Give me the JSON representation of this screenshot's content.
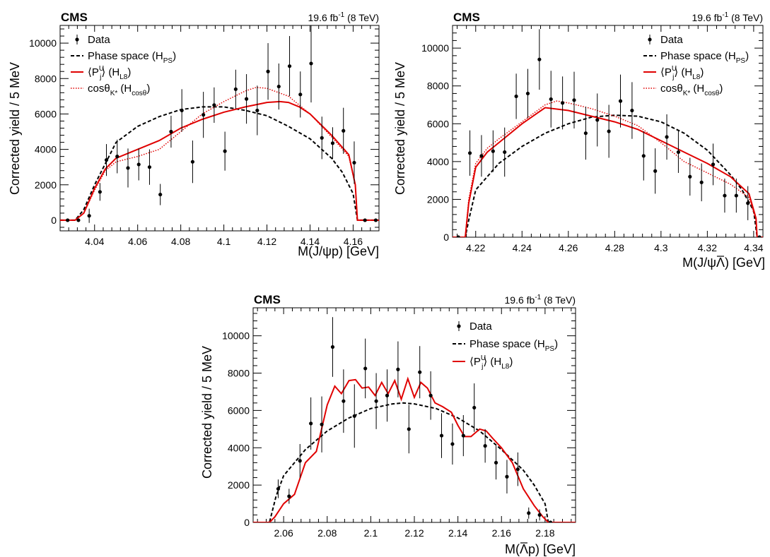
{
  "chart_data": [
    {
      "type": "scatter",
      "experiment": "CMS",
      "lumi": "19.6 fb",
      "lumi_exp": "-1",
      "energy": "(8 TeV)",
      "xlabel": "M(J/ψp) [GeV]",
      "ylabel": "Corrected yield / 5 MeV",
      "xlim": [
        4.024,
        4.172
      ],
      "ylim": [
        -600,
        11000
      ],
      "xticks": [
        4.04,
        4.06,
        4.08,
        4.1,
        4.12,
        4.14,
        4.16
      ],
      "xtick_labels": [
        "4.04",
        "4.06",
        "4.08",
        "4.1",
        "4.12",
        "4.14",
        "4.16"
      ],
      "yticks": [
        0,
        2000,
        4000,
        6000,
        8000,
        10000
      ],
      "ytick_labels": [
        "0",
        "2000",
        "4000",
        "6000",
        "8000",
        "10000"
      ],
      "legend": {
        "placement": "top-left",
        "entries": [
          {
            "style": "data",
            "text": "Data"
          },
          {
            "style": "dashed",
            "text": "Phase space (H",
            "sub": "PS",
            "suffix": ")"
          },
          {
            "style": "solid",
            "text": "⟨P",
            "sub": "j",
            "sup": "U",
            "suffix2": "⟩ (H",
            "sub2": "L8",
            "suffix": ")"
          },
          {
            "style": "dotted",
            "text": "cosθ",
            "sub": "K*",
            "suffix2": " (H",
            "sub2": "cosθ",
            "suffix": ")"
          }
        ]
      },
      "series": [
        {
          "name": "Data",
          "style": "data",
          "x": [
            4.0275,
            4.0325,
            4.0375,
            4.0425,
            4.0455,
            4.0505,
            4.0555,
            4.0605,
            4.0655,
            4.0705,
            4.0755,
            4.0805,
            4.0855,
            4.0905,
            4.0955,
            4.1005,
            4.1055,
            4.1105,
            4.1155,
            4.1205,
            4.1255,
            4.1305,
            4.1355,
            4.1405,
            4.1455,
            4.1505,
            4.1555,
            4.1605,
            4.1655,
            4.1705
          ],
          "y": [
            0,
            0,
            250,
            1600,
            3400,
            3600,
            2950,
            3150,
            3000,
            1450,
            5000,
            6200,
            3300,
            5950,
            6500,
            3900,
            7400,
            6850,
            6200,
            8400,
            7550,
            8700,
            7100,
            8850,
            4650,
            4350,
            5050,
            3250,
            0,
            0
          ],
          "err": [
            0,
            0,
            400,
            500,
            900,
            950,
            1100,
            900,
            1000,
            600,
            900,
            1200,
            1200,
            1300,
            1000,
            1100,
            1100,
            1400,
            1400,
            1600,
            1300,
            1700,
            1300,
            2200,
            1200,
            900,
            1300,
            1200,
            0,
            0
          ]
        },
        {
          "name": "Phase space (H_PS)",
          "style": "dashed",
          "x": [
            4.024,
            4.031,
            4.035,
            4.04,
            4.05,
            4.06,
            4.07,
            4.08,
            4.09,
            4.1,
            4.11,
            4.12,
            4.13,
            4.14,
            4.15,
            4.155,
            4.16,
            4.162,
            4.172
          ],
          "y": [
            0,
            0,
            600,
            2000,
            4400,
            5300,
            5850,
            6250,
            6400,
            6400,
            6200,
            5900,
            5300,
            4600,
            3500,
            2700,
            1500,
            0,
            0
          ]
        },
        {
          "name": "⟨P_j^U⟩ (H_L8)",
          "style": "solid",
          "x": [
            4.024,
            4.031,
            4.035,
            4.04,
            4.045,
            4.05,
            4.06,
            4.07,
            4.08,
            4.09,
            4.1,
            4.11,
            4.12,
            4.126,
            4.13,
            4.135,
            4.14,
            4.15,
            4.158,
            4.161,
            4.162,
            4.172
          ],
          "y": [
            0,
            0,
            400,
            1800,
            2900,
            3500,
            4000,
            4500,
            5200,
            5700,
            6100,
            6400,
            6650,
            6700,
            6650,
            6400,
            6000,
            4800,
            3700,
            2000,
            0,
            0
          ]
        },
        {
          "name": "cosθ_K* (H_cosθ)",
          "style": "dotted",
          "x": [
            4.024,
            4.031,
            4.035,
            4.04,
            4.045,
            4.05,
            4.06,
            4.07,
            4.08,
            4.09,
            4.1,
            4.11,
            4.115,
            4.12,
            4.13,
            4.14,
            4.15,
            4.158,
            4.161,
            4.162,
            4.172
          ],
          "y": [
            0,
            0,
            400,
            1700,
            2800,
            3300,
            3600,
            4000,
            5000,
            6000,
            6700,
            7300,
            7500,
            7450,
            7000,
            6000,
            4700,
            3600,
            2000,
            0,
            0
          ]
        }
      ]
    },
    {
      "type": "scatter",
      "experiment": "CMS",
      "lumi": "19.6 fb",
      "lumi_exp": "-1",
      "energy": "(8 TeV)",
      "xlabel": "M(J/ψΛ) [GeV]",
      "xlabel_overline": "Λ",
      "ylabel": "Corrected yield / 5 MeV",
      "xlim": [
        4.21,
        4.344
      ],
      "ylim": [
        0,
        11200
      ],
      "xticks": [
        4.22,
        4.24,
        4.26,
        4.28,
        4.3,
        4.32,
        4.34
      ],
      "xtick_labels": [
        "4.22",
        "4.24",
        "4.26",
        "4.28",
        "4.3",
        "4.32",
        "4.34"
      ],
      "yticks": [
        0,
        2000,
        4000,
        6000,
        8000,
        10000
      ],
      "ytick_labels": [
        "0",
        "2000",
        "4000",
        "6000",
        "8000",
        "10000"
      ],
      "legend": {
        "placement": "top-right",
        "entries": [
          {
            "style": "data",
            "text": "Data"
          },
          {
            "style": "dashed",
            "text": "Phase space (H",
            "sub": "PS",
            "suffix": ")"
          },
          {
            "style": "solid",
            "text": "⟨P",
            "sub": "j",
            "sup": "U",
            "suffix2": "⟩ (H",
            "sub2": "L8",
            "suffix": ")"
          },
          {
            "style": "dotted",
            "text": "cosθ",
            "sub": "K*",
            "suffix2": " (H",
            "sub2": "cosθ",
            "suffix": ")"
          }
        ]
      },
      "series": [
        {
          "name": "Data",
          "style": "data",
          "x": [
            4.2125,
            4.2175,
            4.2225,
            4.2275,
            4.2325,
            4.2375,
            4.2425,
            4.2475,
            4.2525,
            4.2575,
            4.2625,
            4.2675,
            4.2725,
            4.2775,
            4.2825,
            4.2875,
            4.2925,
            4.2975,
            4.3025,
            4.3075,
            4.3125,
            4.3175,
            4.3225,
            4.3275,
            4.3325,
            4.3375,
            4.3425
          ],
          "y": [
            0,
            4450,
            4300,
            4550,
            4500,
            7450,
            7600,
            9400,
            7300,
            7100,
            7250,
            5500,
            6200,
            5600,
            7200,
            6700,
            4300,
            3500,
            5300,
            4500,
            3200,
            2900,
            3850,
            2200,
            2200,
            1800,
            0
          ],
          "err": [
            0,
            1200,
            1100,
            1100,
            1300,
            1200,
            1300,
            1600,
            1500,
            1400,
            1500,
            1400,
            1400,
            1400,
            1400,
            1500,
            1300,
            1200,
            1200,
            1100,
            1000,
            1000,
            1100,
            900,
            900,
            900,
            0
          ]
        },
        {
          "name": "Phase space (H_PS)",
          "style": "dashed",
          "x": [
            4.21,
            4.2155,
            4.217,
            4.22,
            4.23,
            4.24,
            4.25,
            4.26,
            4.27,
            4.28,
            4.29,
            4.3,
            4.31,
            4.32,
            4.33,
            4.335,
            4.34,
            4.3415,
            4.344
          ],
          "y": [
            0,
            0,
            900,
            2500,
            3900,
            4800,
            5500,
            6000,
            6350,
            6450,
            6400,
            6100,
            5500,
            4600,
            3300,
            2500,
            1400,
            0,
            0
          ]
        },
        {
          "name": "⟨P_j^U⟩ (H_L8)",
          "style": "solid",
          "x": [
            4.21,
            4.2155,
            4.217,
            4.22,
            4.225,
            4.23,
            4.24,
            4.25,
            4.26,
            4.27,
            4.28,
            4.29,
            4.3,
            4.31,
            4.32,
            4.33,
            4.338,
            4.341,
            4.3415,
            4.344
          ],
          "y": [
            0,
            0,
            1800,
            3700,
            4500,
            5000,
            6000,
            6850,
            6700,
            6400,
            6100,
            5700,
            5100,
            4500,
            3900,
            3200,
            2300,
            1000,
            0,
            0
          ]
        },
        {
          "name": "cosθ_K* (H_cosθ)",
          "style": "dotted",
          "x": [
            4.21,
            4.2155,
            4.217,
            4.22,
            4.225,
            4.23,
            4.24,
            4.25,
            4.255,
            4.26,
            4.27,
            4.28,
            4.29,
            4.3,
            4.31,
            4.32,
            4.33,
            4.338,
            4.341,
            4.3415,
            4.344
          ],
          "y": [
            0,
            0,
            2000,
            3900,
            4700,
            5200,
            6100,
            7000,
            7200,
            7100,
            6800,
            6400,
            5900,
            5000,
            4000,
            3400,
            2800,
            2100,
            900,
            0,
            0
          ]
        }
      ]
    },
    {
      "type": "scatter",
      "experiment": "CMS",
      "lumi": "19.6 fb",
      "lumi_exp": "-1",
      "energy": "(8 TeV)",
      "xlabel": "M(Λp) [GeV]",
      "xlabel_overline": "Λ",
      "ylabel": "Corrected yield / 5 MeV",
      "xlim": [
        2.046,
        2.194
      ],
      "ylim": [
        0,
        11500
      ],
      "xticks": [
        2.06,
        2.08,
        2.1,
        2.12,
        2.14,
        2.16,
        2.18
      ],
      "xtick_labels": [
        "2.06",
        "2.08",
        "2.1",
        "2.12",
        "2.14",
        "2.16",
        "2.18"
      ],
      "yticks": [
        0,
        2000,
        4000,
        6000,
        8000,
        10000
      ],
      "ytick_labels": [
        "0",
        "2000",
        "4000",
        "6000",
        "8000",
        "10000"
      ],
      "legend": {
        "placement": "top-right",
        "entries": [
          {
            "style": "data",
            "text": "Data"
          },
          {
            "style": "dashed",
            "text": "Phase space (H",
            "sub": "PS",
            "suffix": ")"
          },
          {
            "style": "solid",
            "text": "⟨P",
            "sub": "j",
            "sup": "U",
            "suffix2": "⟩ (H",
            "sub2": "L8",
            "suffix": ")"
          }
        ]
      },
      "series": [
        {
          "name": "Data",
          "style": "data",
          "x": [
            2.0575,
            2.0625,
            2.0675,
            2.0725,
            2.0775,
            2.0825,
            2.0875,
            2.0925,
            2.0975,
            2.1025,
            2.1075,
            2.1125,
            2.1175,
            2.1225,
            2.1275,
            2.1325,
            2.1375,
            2.1425,
            2.1475,
            2.1525,
            2.1575,
            2.1625,
            2.1675,
            2.1725,
            2.1775,
            2.1825
          ],
          "y": [
            1800,
            1400,
            3300,
            5300,
            5250,
            9400,
            6500,
            5700,
            8250,
            6500,
            6800,
            8200,
            5000,
            8050,
            6800,
            4650,
            4200,
            4650,
            6150,
            4100,
            3200,
            2450,
            2850,
            500,
            400,
            0
          ],
          "err": [
            500,
            400,
            900,
            1400,
            1500,
            1600,
            1700,
            1700,
            1600,
            1500,
            1400,
            1500,
            1300,
            1400,
            1300,
            1200,
            1100,
            1100,
            1300,
            900,
            900,
            900,
            900,
            300,
            300,
            0
          ]
        },
        {
          "name": "Phase space (H_PS)",
          "style": "dashed",
          "x": [
            2.046,
            2.0535,
            2.0565,
            2.06,
            2.07,
            2.08,
            2.09,
            2.1,
            2.11,
            2.115,
            2.12,
            2.13,
            2.14,
            2.15,
            2.16,
            2.17,
            2.175,
            2.18,
            2.1815,
            2.194
          ],
          "y": [
            0,
            0,
            1400,
            2500,
            3900,
            4900,
            5600,
            6100,
            6350,
            6400,
            6350,
            6100,
            5600,
            4900,
            3900,
            2800,
            2000,
            1000,
            0,
            0
          ]
        },
        {
          "name": "⟨P_j^U⟩ (H_L8)",
          "style": "solid",
          "x": [
            2.046,
            2.0535,
            2.056,
            2.06,
            2.065,
            2.07,
            2.075,
            2.08,
            2.0835,
            2.0865,
            2.09,
            2.093,
            2.096,
            2.099,
            2.102,
            2.105,
            2.108,
            2.111,
            2.114,
            2.117,
            2.12,
            2.123,
            2.126,
            2.1295,
            2.133,
            2.137,
            2.14,
            2.143,
            2.146,
            2.15,
            2.153,
            2.156,
            2.16,
            2.165,
            2.17,
            2.175,
            2.179,
            2.1815,
            2.194
          ],
          "y": [
            0,
            0,
            300,
            1000,
            1500,
            3200,
            3800,
            6300,
            7300,
            6900,
            7600,
            7650,
            7200,
            7250,
            6800,
            7500,
            6900,
            7600,
            6600,
            7700,
            6700,
            7500,
            7200,
            6400,
            6200,
            5900,
            5200,
            4600,
            4600,
            5000,
            4900,
            4500,
            4000,
            3200,
            1800,
            900,
            300,
            0,
            0
          ]
        }
      ]
    }
  ]
}
